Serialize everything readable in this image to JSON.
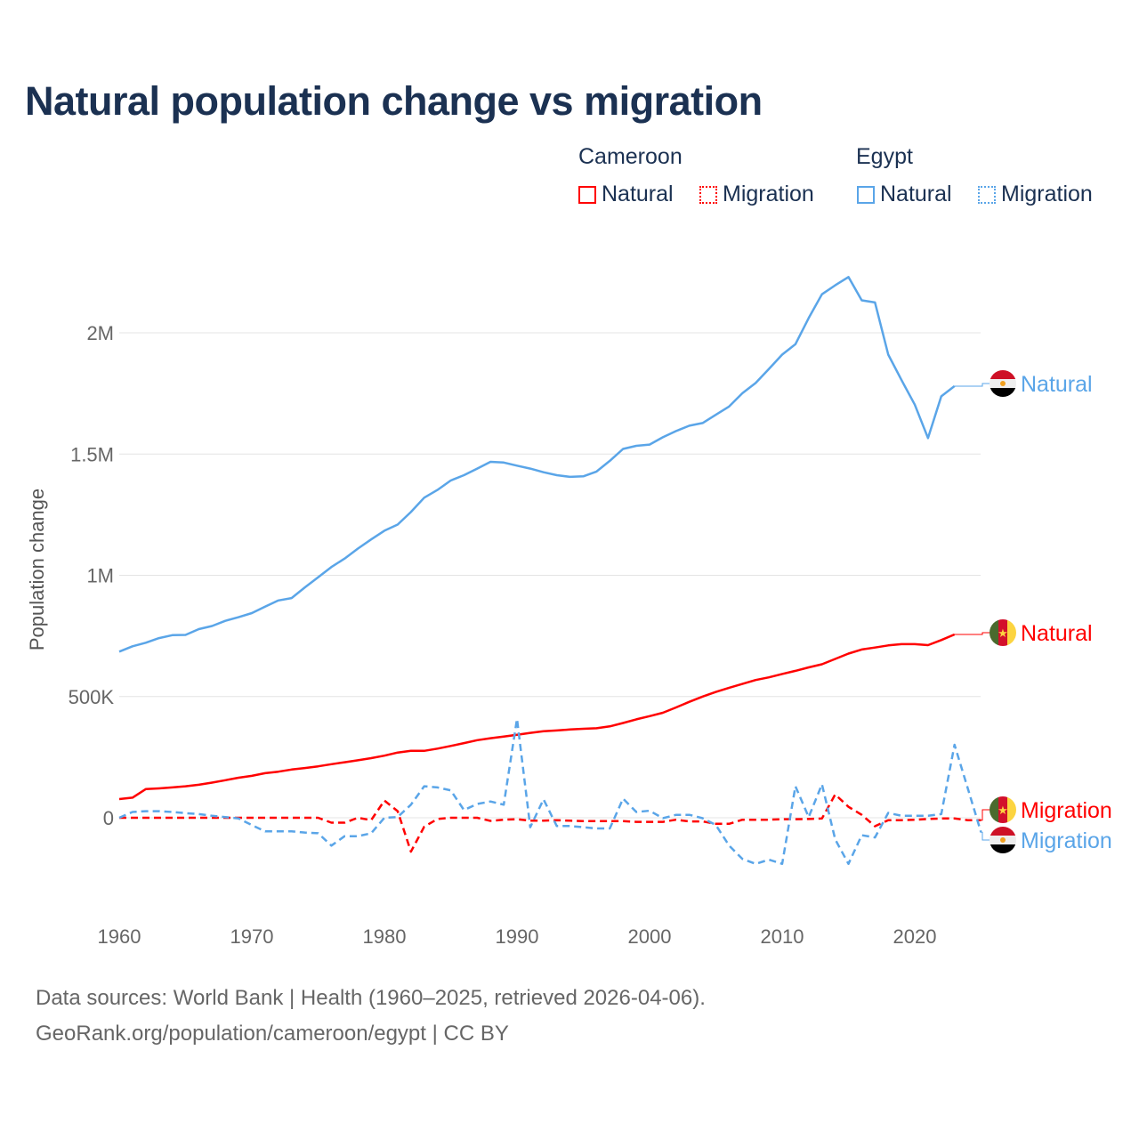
{
  "chart_data": {
    "type": "line",
    "title": "Natural population change vs migration",
    "xlabel": "",
    "ylabel": "Population change",
    "xlim": [
      1960,
      2025
    ],
    "ylim": [
      -250000,
      2300000
    ],
    "x_ticks": [
      "1960",
      "1970",
      "1980",
      "1990",
      "2000",
      "2010",
      "2020"
    ],
    "y_ticks": [
      {
        "value": 0,
        "label": "0"
      },
      {
        "value": 500000,
        "label": "500K"
      },
      {
        "value": 1000000,
        "label": "1M"
      },
      {
        "value": 1500000,
        "label": "1.5M"
      },
      {
        "value": 2000000,
        "label": "2M"
      }
    ],
    "grid": true,
    "legend": {
      "placement": "top-right",
      "groups": [
        {
          "country": "Cameroon",
          "items": [
            "Natural",
            "Migration"
          ]
        },
        {
          "country": "Egypt",
          "items": [
            "Natural",
            "Migration"
          ]
        }
      ]
    },
    "series": [
      {
        "name": "Natural",
        "country": "Cameroon",
        "color": "#ff0000",
        "style": "solid",
        "start_year": 1960,
        "values": [
          77000,
          83000,
          118000,
          121000,
          125000,
          130000,
          136000,
          145000,
          155000,
          165000,
          173000,
          184000,
          190000,
          199000,
          205000,
          212000,
          221000,
          229000,
          237000,
          246000,
          256000,
          269000,
          276000,
          276000,
          285000,
          296000,
          308000,
          320000,
          328000,
          335000,
          342000,
          350000,
          357000,
          360000,
          364000,
          367000,
          369000,
          377000,
          391000,
          406000,
          419000,
          433000,
          455000,
          478000,
          500000,
          519000,
          536000,
          552000,
          568000,
          579000,
          593000,
          606000,
          620000,
          633000,
          655000,
          677000,
          694000,
          702000,
          711000,
          716000,
          716000,
          712000,
          733000,
          756000
        ]
      },
      {
        "name": "Migration",
        "country": "Cameroon",
        "color": "#ff0000",
        "style": "dashed",
        "start_year": 1960,
        "values": [
          0,
          0,
          0,
          0,
          0,
          0,
          0,
          0,
          0,
          0,
          0,
          0,
          0,
          0,
          0,
          0,
          -20000,
          -20000,
          0,
          -10000,
          71000,
          27000,
          -140000,
          -37000,
          -5000,
          0,
          0,
          0,
          -13000,
          -8000,
          -6000,
          -12000,
          -12000,
          -10000,
          -12000,
          -14000,
          -14000,
          -14000,
          -14000,
          -17000,
          -17000,
          -17000,
          -8000,
          -15000,
          -15000,
          -25000,
          -25000,
          -8000,
          -8000,
          -8000,
          -6000,
          -6000,
          -5000,
          -3000,
          96000,
          45000,
          12000,
          -35000,
          -10000,
          -10000,
          -8000,
          -5000,
          -3000,
          -3000,
          -10000,
          -10000
        ]
      },
      {
        "name": "Natural",
        "country": "Egypt",
        "color": "#5aa5e8",
        "style": "solid",
        "start_year": 1960,
        "values": [
          685000,
          707000,
          722000,
          741000,
          753000,
          754000,
          778000,
          791000,
          812000,
          827000,
          844000,
          871000,
          896000,
          906000,
          950000,
          992000,
          1034000,
          1069000,
          1110000,
          1148000,
          1184000,
          1209000,
          1261000,
          1320000,
          1352000,
          1391000,
          1413000,
          1440000,
          1468000,
          1465000,
          1452000,
          1440000,
          1425000,
          1413000,
          1406000,
          1408000,
          1428000,
          1472000,
          1521000,
          1534000,
          1539000,
          1569000,
          1595000,
          1617000,
          1628000,
          1662000,
          1696000,
          1751000,
          1793000,
          1851000,
          1910000,
          1953000,
          2061000,
          2159000,
          2196000,
          2230000,
          2134000,
          2125000,
          1910000,
          1805000,
          1704000,
          1566000,
          1738000,
          1780000
        ]
      },
      {
        "name": "Migration",
        "country": "Egypt",
        "color": "#5aa5e8",
        "style": "dashed",
        "start_year": 1960,
        "values": [
          0,
          24000,
          27000,
          27000,
          24000,
          19000,
          15000,
          8000,
          3000,
          -3000,
          -30000,
          -56000,
          -56000,
          -56000,
          -61000,
          -64000,
          -115000,
          -76000,
          -76000,
          -64000,
          0,
          3000,
          54000,
          130000,
          125000,
          113000,
          32000,
          57000,
          67000,
          54000,
          408000,
          -39000,
          76000,
          -34000,
          -34000,
          -39000,
          -44000,
          -44000,
          79000,
          24000,
          29000,
          -2000,
          12000,
          12000,
          -2000,
          -30000,
          -115000,
          -170000,
          -190000,
          -173000,
          -190000,
          130000,
          3000,
          138000,
          -89000,
          -190000,
          -72000,
          -81000,
          20000,
          8000,
          8000,
          8000,
          15000,
          301000,
          121000,
          -60000
        ]
      }
    ]
  },
  "source_line1": "Data sources: World Bank | Health (1960–2025, retrieved 2026-04-06).",
  "source_line2": "GeoRank.org/population/cameroon/egypt | CC BY",
  "colors": {
    "cameroon": "#ff0000",
    "egypt": "#5aa5e8",
    "title": "#1b3152"
  },
  "icons": [
    "flag-cameroon-icon",
    "flag-egypt-icon"
  ]
}
